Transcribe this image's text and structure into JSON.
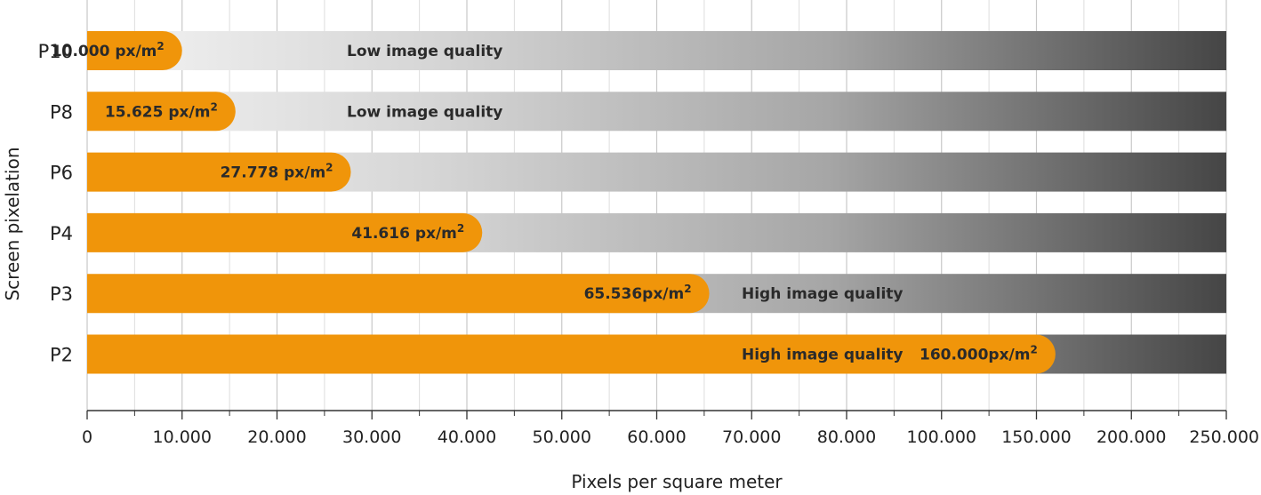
{
  "chart_data": {
    "type": "bar",
    "orientation": "horizontal",
    "xlabel": "Pixels per square meter",
    "ylabel": "Screen pixelation",
    "x_scale": "categorical-nonlinear",
    "x_ticks": [
      "0",
      "10.000",
      "20.000",
      "30.000",
      "40.000",
      "50.000",
      "60.000",
      "70.000",
      "80.000",
      "100.000",
      "150.000",
      "200.000",
      "250.000"
    ],
    "x_tick_values": [
      0,
      10000,
      20000,
      30000,
      40000,
      50000,
      60000,
      70000,
      80000,
      100000,
      150000,
      200000,
      250000
    ],
    "xlim": [
      0,
      250000
    ],
    "categories": [
      "P10",
      "P8",
      "P6",
      "P4",
      "P3",
      "P2"
    ],
    "values": [
      10000,
      15625,
      27778,
      41616,
      65536,
      160000
    ],
    "value_labels": [
      "10.000 px/m",
      "15.625 px/m",
      "27.778 px/m",
      "41.616 px/m",
      "65.536px/m",
      "160.000px/m"
    ],
    "value_label_superscript": "2",
    "quality_labels": [
      "Low image quality",
      "Low image quality",
      "",
      "",
      "High image quality",
      "High image quality"
    ],
    "grid": true,
    "colors": {
      "bar": "#f0950a",
      "track_start": "#f4f4f4",
      "track_end": "#454545",
      "grid": "#c8c8c8",
      "axis": "#333333"
    }
  }
}
